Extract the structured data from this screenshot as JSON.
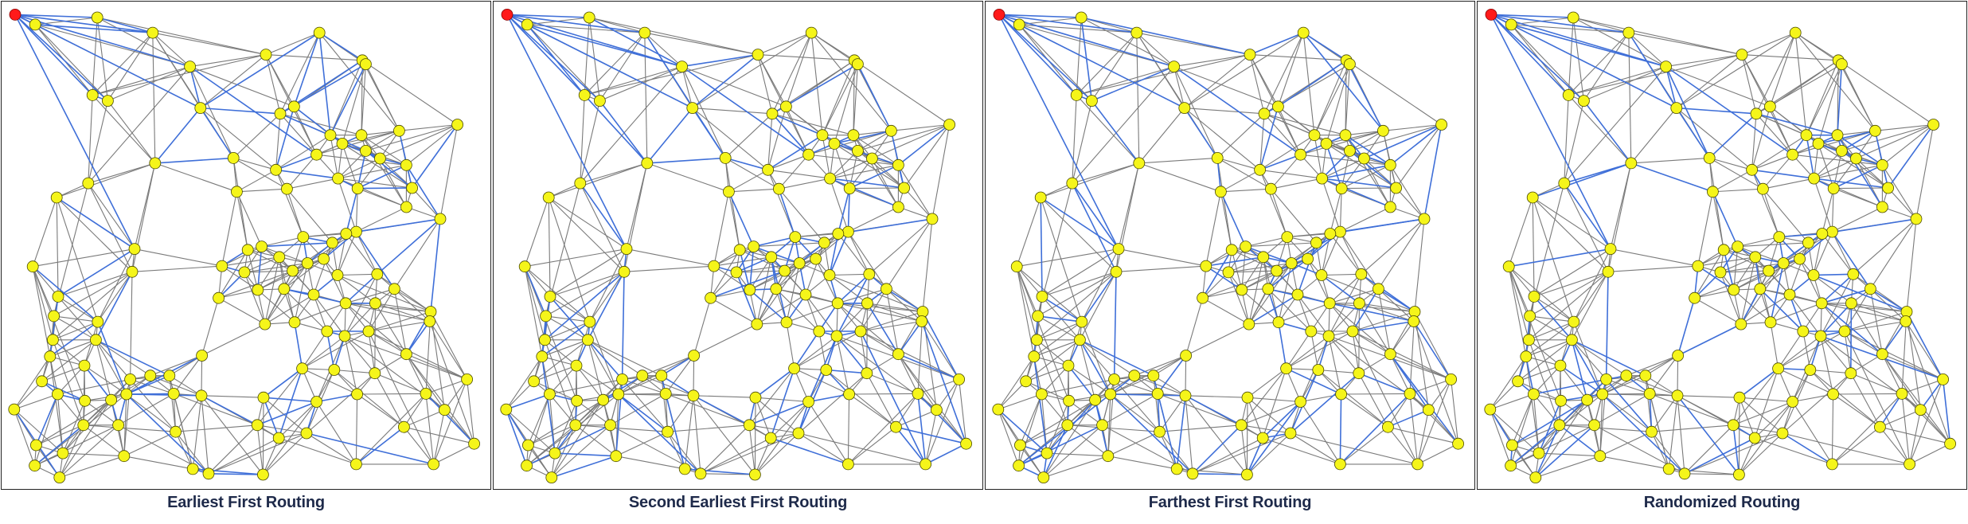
{
  "panels": [
    {
      "title": "Earliest First Routing",
      "seed": 11
    },
    {
      "title": "Second Earliest First Routing",
      "seed": 23
    },
    {
      "title": "Farthest First Routing",
      "seed": 37
    },
    {
      "title": "Randomized Routing",
      "seed": 51
    }
  ],
  "colors": {
    "edge": "#7a7a7a",
    "route_edge": "#3f6fd8",
    "node_fill": "#f5f51a",
    "node_stroke": "#4a4a00",
    "source_node": "#ff1a1a"
  },
  "graph": {
    "nodes": [
      [
        0.015,
        0.014,
        "source"
      ],
      [
        0.187,
        0.02
      ],
      [
        0.303,
        0.052
      ],
      [
        0.652,
        0.052
      ],
      [
        0.742,
        0.11
      ],
      [
        0.057,
        0.035
      ],
      [
        0.381,
        0.123
      ],
      [
        0.54,
        0.098
      ],
      [
        0.749,
        0.118
      ],
      [
        0.177,
        0.183
      ],
      [
        0.209,
        0.195
      ],
      [
        0.403,
        0.21
      ],
      [
        0.57,
        0.222
      ],
      [
        0.599,
        0.207
      ],
      [
        0.941,
        0.245
      ],
      [
        0.819,
        0.258
      ],
      [
        0.74,
        0.267
      ],
      [
        0.675,
        0.267
      ],
      [
        0.308,
        0.326
      ],
      [
        0.472,
        0.315
      ],
      [
        0.646,
        0.308
      ],
      [
        0.7,
        0.285
      ],
      [
        0.749,
        0.3
      ],
      [
        0.779,
        0.316
      ],
      [
        0.834,
        0.33
      ],
      [
        0.561,
        0.34
      ],
      [
        0.102,
        0.398
      ],
      [
        0.168,
        0.368
      ],
      [
        0.479,
        0.386
      ],
      [
        0.584,
        0.38
      ],
      [
        0.691,
        0.358
      ],
      [
        0.732,
        0.379
      ],
      [
        0.846,
        0.378
      ],
      [
        0.834,
        0.418
      ],
      [
        0.729,
        0.47
      ],
      [
        0.679,
        0.493
      ],
      [
        0.905,
        0.443
      ],
      [
        0.265,
        0.506
      ],
      [
        0.502,
        0.508
      ],
      [
        0.531,
        0.501
      ],
      [
        0.618,
        0.481
      ],
      [
        0.708,
        0.474
      ],
      [
        0.052,
        0.543
      ],
      [
        0.448,
        0.542
      ],
      [
        0.495,
        0.555
      ],
      [
        0.568,
        0.523
      ],
      [
        0.627,
        0.536
      ],
      [
        0.661,
        0.527
      ],
      [
        0.596,
        0.552
      ],
      [
        0.69,
        0.561
      ],
      [
        0.773,
        0.559
      ],
      [
        0.26,
        0.554
      ],
      [
        0.105,
        0.606
      ],
      [
        0.441,
        0.609
      ],
      [
        0.523,
        0.592
      ],
      [
        0.578,
        0.59
      ],
      [
        0.64,
        0.602
      ],
      [
        0.707,
        0.62
      ],
      [
        0.769,
        0.62
      ],
      [
        0.809,
        0.59
      ],
      [
        0.885,
        0.638
      ],
      [
        0.096,
        0.647
      ],
      [
        0.188,
        0.659
      ],
      [
        0.538,
        0.664
      ],
      [
        0.6,
        0.66
      ],
      [
        0.668,
        0.679
      ],
      [
        0.705,
        0.689
      ],
      [
        0.755,
        0.679
      ],
      [
        0.883,
        0.658
      ],
      [
        0.094,
        0.697
      ],
      [
        0.184,
        0.697
      ],
      [
        0.406,
        0.73
      ],
      [
        0.834,
        0.727
      ],
      [
        0.088,
        0.732
      ],
      [
        0.16,
        0.751
      ],
      [
        0.256,
        0.78
      ],
      [
        0.298,
        0.772
      ],
      [
        0.338,
        0.772
      ],
      [
        0.616,
        0.757
      ],
      [
        0.683,
        0.76
      ],
      [
        0.768,
        0.767
      ],
      [
        0.961,
        0.78
      ],
      [
        0.013,
        0.843
      ],
      [
        0.071,
        0.784
      ],
      [
        0.104,
        0.811
      ],
      [
        0.216,
        0.823
      ],
      [
        0.248,
        0.811
      ],
      [
        0.347,
        0.81
      ],
      [
        0.405,
        0.814
      ],
      [
        0.535,
        0.818
      ],
      [
        0.646,
        0.827
      ],
      [
        0.731,
        0.811
      ],
      [
        0.875,
        0.81
      ],
      [
        0.914,
        0.844
      ],
      [
        0.161,
        0.825
      ],
      [
        0.059,
        0.918
      ],
      [
        0.115,
        0.935
      ],
      [
        0.158,
        0.876
      ],
      [
        0.231,
        0.876
      ],
      [
        0.351,
        0.89
      ],
      [
        0.522,
        0.876
      ],
      [
        0.567,
        0.903
      ],
      [
        0.625,
        0.893
      ],
      [
        0.829,
        0.88
      ],
      [
        0.976,
        0.915
      ],
      [
        0.056,
        0.961
      ],
      [
        0.243,
        0.941
      ],
      [
        0.387,
        0.968
      ],
      [
        0.42,
        0.978
      ],
      [
        0.534,
        0.98
      ],
      [
        0.729,
        0.958
      ],
      [
        0.891,
        0.958
      ],
      [
        0.108,
        0.986
      ]
    ]
  }
}
